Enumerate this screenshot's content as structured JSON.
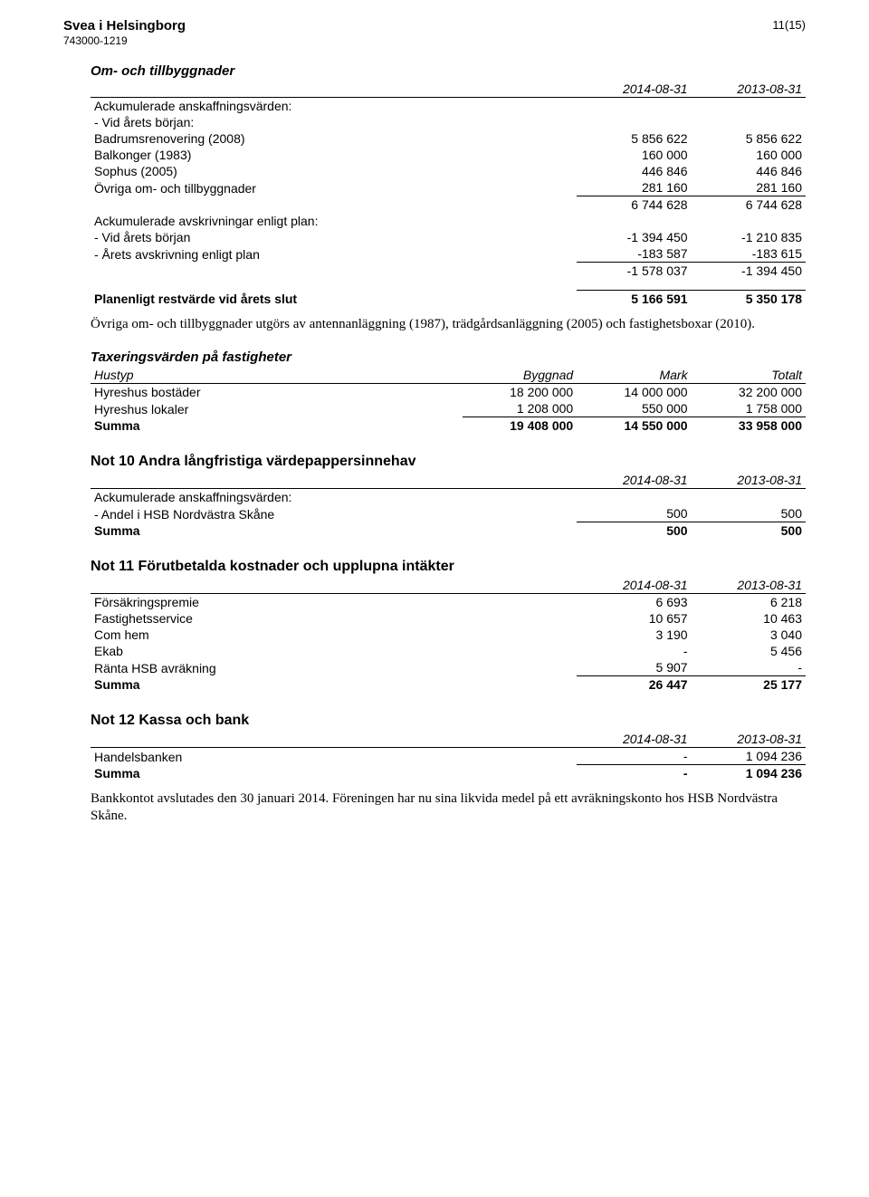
{
  "header": {
    "company": "Svea i Helsingborg",
    "org_no": "743000-1219",
    "page_no": "11(15)"
  },
  "om_tillbyggnader": {
    "title": "Om- och tillbyggnader",
    "col1": "2014-08-31",
    "col2": "2013-08-31",
    "ack_anskaff_label": "Ackumulerade anskaffningsvärden:",
    "vid_arets_borjan_label": "- Vid årets början:",
    "rows": [
      {
        "label": "Badrumsrenovering (2008)",
        "v1": "5 856 622",
        "v2": "5 856 622"
      },
      {
        "label": "Balkonger (1983)",
        "v1": "160 000",
        "v2": "160 000"
      },
      {
        "label": "Sophus (2005)",
        "v1": "446 846",
        "v2": "446 846"
      },
      {
        "label": "Övriga om- och tillbyggnader",
        "v1": "281 160",
        "v2": "281 160"
      }
    ],
    "subtotal1": {
      "v1": "6 744 628",
      "v2": "6 744 628"
    },
    "ack_avskr_label": "Ackumulerade avskrivningar enligt plan:",
    "avskr_rows": [
      {
        "label": "- Vid årets början",
        "v1": "-1 394 450",
        "v2": "-1 210 835"
      },
      {
        "label": "- Årets avskrivning enligt plan",
        "v1": "-183 587",
        "v2": "-183 615"
      }
    ],
    "subtotal2": {
      "v1": "-1 578 037",
      "v2": "-1 394 450"
    },
    "planenligt_label": "Planenligt restvärde vid årets slut",
    "planenligt": {
      "v1": "5 166 591",
      "v2": "5 350 178"
    },
    "paragraph": "Övriga om- och tillbyggnader utgörs av antennanläggning (1987), trädgårdsanläggning (2005) och fastighetsboxar (2010)."
  },
  "taxering": {
    "title": "Taxeringsvärden på fastigheter",
    "headers": {
      "hustyp": "Hustyp",
      "byggnad": "Byggnad",
      "mark": "Mark",
      "totalt": "Totalt"
    },
    "rows": [
      {
        "label": "Hyreshus bostäder",
        "byggnad": "18 200 000",
        "mark": "14 000 000",
        "totalt": "32 200 000"
      },
      {
        "label": "Hyreshus lokaler",
        "byggnad": "1 208 000",
        "mark": "550 000",
        "totalt": "1 758 000"
      }
    ],
    "summa_label": "Summa",
    "summa": {
      "byggnad": "19 408 000",
      "mark": "14 550 000",
      "totalt": "33 958 000"
    }
  },
  "not10": {
    "title": "Not 10  Andra långfristiga värdepappersinnehav",
    "col1": "2014-08-31",
    "col2": "2013-08-31",
    "ack_label": "Ackumulerade anskaffningsvärden:",
    "rows": [
      {
        "label": "- Andel i HSB Nordvästra Skåne",
        "v1": "500",
        "v2": "500"
      }
    ],
    "summa_label": "Summa",
    "summa": {
      "v1": "500",
      "v2": "500"
    }
  },
  "not11": {
    "title": "Not 11  Förutbetalda kostnader och upplupna intäkter",
    "col1": "2014-08-31",
    "col2": "2013-08-31",
    "rows": [
      {
        "label": "Försäkringspremie",
        "v1": "6 693",
        "v2": "6 218"
      },
      {
        "label": "Fastighetsservice",
        "v1": "10 657",
        "v2": "10 463"
      },
      {
        "label": "Com hem",
        "v1": "3 190",
        "v2": "3 040"
      },
      {
        "label": "Ekab",
        "v1": "-",
        "v2": "5 456"
      },
      {
        "label": "Ränta HSB avräkning",
        "v1": "5 907",
        "v2": "-"
      }
    ],
    "summa_label": "Summa",
    "summa": {
      "v1": "26 447",
      "v2": "25 177"
    }
  },
  "not12": {
    "title": "Not 12  Kassa och bank",
    "col1": "2014-08-31",
    "col2": "2013-08-31",
    "rows": [
      {
        "label": "Handelsbanken",
        "v1": "-",
        "v2": "1 094 236"
      }
    ],
    "summa_label": "Summa",
    "summa": {
      "v1": "-",
      "v2": "1 094 236"
    },
    "paragraph": "Bankkontot avslutades den 30 januari 2014. Föreningen har nu sina likvida medel på ett avräkningskonto hos HSB Nordvästra Skåne."
  }
}
